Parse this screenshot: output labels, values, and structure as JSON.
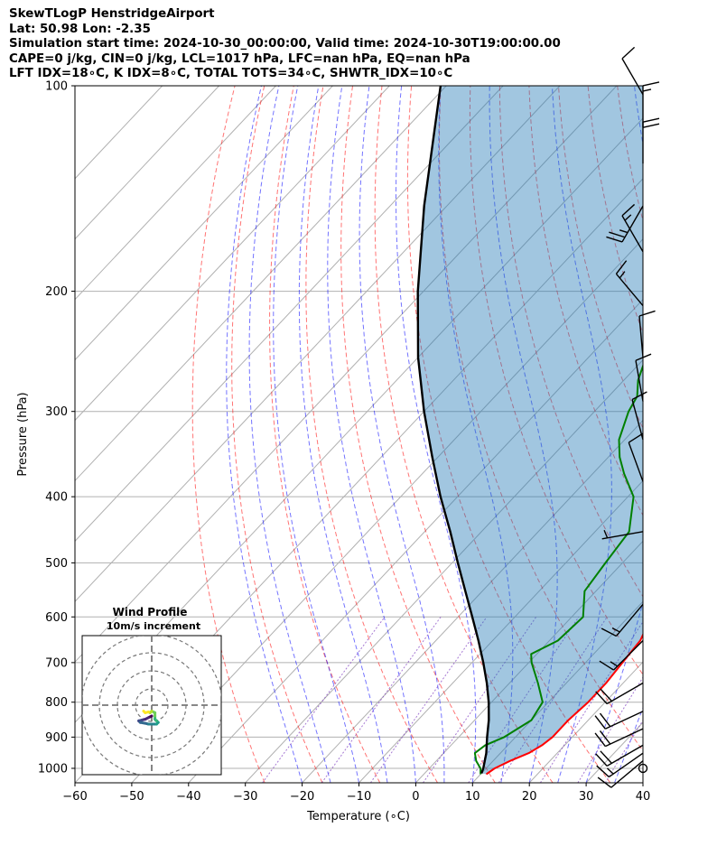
{
  "header": {
    "line1": "SkewTLogP HenstridgeAirport",
    "line2": "Lat: 50.98   Lon: -2.35",
    "line3": "Simulation start time: 2024-10-30_00:00:00, Valid time: 2024-10-30T19:00:00.00",
    "line4": "CAPE=0 j/kg, CIN=0 j/kg, LCL=1017 hPa, LFC=nan hPa, EQ=nan hPa",
    "line5": "LFT IDX=18∘C, K IDX=8∘C, TOTAL TOTS=34∘C, SHWTR_IDX=10∘C"
  },
  "chart_data": {
    "type": "line",
    "subtype": "skew-t log-p",
    "xlabel": "Temperature (∘C)",
    "ylabel": "Pressure (hPa)",
    "xlim": [
      -60,
      40
    ],
    "ylim": [
      1050,
      100
    ],
    "y_scale": "log",
    "x_ticks": [
      "−60",
      "−50",
      "−40",
      "−30",
      "−20",
      "−10",
      "0",
      "10",
      "20",
      "30",
      "40"
    ],
    "y_ticks": [
      "100",
      "200",
      "300",
      "400",
      "500",
      "600",
      "700",
      "800",
      "900",
      "1000"
    ],
    "x_tick_values": [
      -60,
      -50,
      -40,
      -30,
      -20,
      -10,
      0,
      10,
      20,
      30,
      40
    ],
    "y_tick_values": [
      100,
      200,
      300,
      400,
      500,
      600,
      700,
      800,
      900,
      1000
    ],
    "grid": true,
    "series": [
      {
        "role": "temperature",
        "color": "#ff0000",
        "points": [
          [
            1020,
            11
          ],
          [
            1000,
            11.5
          ],
          [
            975,
            13
          ],
          [
            950,
            15
          ],
          [
            925,
            16
          ],
          [
            900,
            16.5
          ],
          [
            850,
            16.5
          ],
          [
            800,
            17
          ],
          [
            750,
            17
          ],
          [
            700,
            16.5
          ],
          [
            650,
            16
          ],
          [
            600,
            14
          ],
          [
            550,
            11
          ],
          [
            500,
            7.5
          ],
          [
            450,
            3.5
          ],
          [
            400,
            -1
          ],
          [
            350,
            -6
          ],
          [
            300,
            -12.5
          ],
          [
            270,
            -17
          ],
          [
            250,
            -20
          ],
          [
            230,
            -23
          ],
          [
            210,
            -26.5
          ],
          [
            195,
            -30
          ],
          [
            185,
            -34
          ],
          [
            170,
            -38
          ],
          [
            155,
            -43
          ],
          [
            145,
            -47
          ],
          [
            130,
            -53
          ],
          [
            115,
            -58
          ],
          [
            100,
            -62
          ]
        ]
      },
      {
        "role": "dewpoint",
        "color": "#008000",
        "points": [
          [
            1020,
            10
          ],
          [
            1000,
            9
          ],
          [
            975,
            7
          ],
          [
            950,
            5.5
          ],
          [
            925,
            6
          ],
          [
            900,
            8
          ],
          [
            850,
            10
          ],
          [
            800,
            9
          ],
          [
            750,
            5
          ],
          [
            700,
            0.5
          ],
          [
            680,
            -1
          ],
          [
            650,
            1.5
          ],
          [
            600,
            2
          ],
          [
            550,
            -2
          ],
          [
            500,
            -3
          ],
          [
            450,
            -4
          ],
          [
            400,
            -9
          ],
          [
            370,
            -14.5
          ],
          [
            350,
            -18
          ],
          [
            330,
            -21
          ],
          [
            300,
            -24
          ],
          [
            285,
            -25
          ],
          [
            270,
            -27.5
          ],
          [
            245,
            -30.5
          ],
          [
            225,
            -34.5
          ],
          [
            200,
            -40
          ],
          [
            185,
            -43
          ],
          [
            170,
            -45.5
          ],
          [
            155,
            -49
          ],
          [
            140,
            -53
          ],
          [
            125,
            -55
          ],
          [
            110,
            -57.5
          ],
          [
            100,
            -60
          ]
        ]
      },
      {
        "role": "parcel",
        "color": "#000000",
        "points": [
          [
            1017,
            10
          ],
          [
            1000,
            9.5
          ],
          [
            950,
            7.5
          ],
          [
            900,
            5
          ],
          [
            850,
            2.5
          ],
          [
            800,
            -0.5
          ],
          [
            750,
            -4
          ],
          [
            700,
            -8
          ],
          [
            650,
            -12.5
          ],
          [
            600,
            -17.5
          ],
          [
            550,
            -23
          ],
          [
            500,
            -29
          ],
          [
            450,
            -35.5
          ],
          [
            400,
            -43
          ],
          [
            350,
            -51
          ],
          [
            300,
            -60
          ],
          [
            250,
            -70
          ],
          [
            200,
            -81
          ],
          [
            150,
            -94
          ],
          [
            100,
            -111
          ]
        ]
      }
    ],
    "dry_adiabats_theta_C": [
      -30,
      -20,
      -10,
      0,
      10,
      20,
      30,
      40,
      50,
      60,
      70,
      80,
      90,
      100,
      110,
      120,
      130,
      140,
      150
    ],
    "moist_adiabats_start_C": [
      -20,
      -15,
      -10,
      -5,
      0,
      5,
      10,
      15,
      20,
      25,
      30,
      35,
      40
    ],
    "mixing_ratio_lines": [
      0.4,
      1,
      2,
      4,
      7,
      10,
      16,
      24,
      32
    ],
    "wind_barbs": [
      {
        "p": 1000,
        "speed_kt": 0,
        "dir_deg": 0
      },
      {
        "p": 975,
        "speed_kt": 10,
        "dir_deg": 230
      },
      {
        "p": 950,
        "speed_kt": 15,
        "dir_deg": 235
      },
      {
        "p": 925,
        "speed_kt": 20,
        "dir_deg": 240
      },
      {
        "p": 875,
        "speed_kt": 20,
        "dir_deg": 245
      },
      {
        "p": 825,
        "speed_kt": 20,
        "dir_deg": 245
      },
      {
        "p": 750,
        "speed_kt": 20,
        "dir_deg": 240
      },
      {
        "p": 650,
        "speed_kt": 15,
        "dir_deg": 225
      },
      {
        "p": 575,
        "speed_kt": 15,
        "dir_deg": 220
      },
      {
        "p": 450,
        "speed_kt": 5,
        "dir_deg": 260
      },
      {
        "p": 380,
        "speed_kt": 10,
        "dir_deg": 340
      },
      {
        "p": 330,
        "speed_kt": 10,
        "dir_deg": 345
      },
      {
        "p": 290,
        "speed_kt": 10,
        "dir_deg": 350
      },
      {
        "p": 250,
        "speed_kt": 10,
        "dir_deg": 355
      },
      {
        "p": 210,
        "speed_kt": 15,
        "dir_deg": 320
      },
      {
        "p": 175,
        "speed_kt": 15,
        "dir_deg": 330
      },
      {
        "p": 150,
        "speed_kt": 25,
        "dir_deg": 210
      },
      {
        "p": 130,
        "speed_kt": 20,
        "dir_deg": 0
      },
      {
        "p": 115,
        "speed_kt": 15,
        "dir_deg": 0
      },
      {
        "p": 103,
        "speed_kt": 10,
        "dir_deg": 330
      }
    ],
    "inset": {
      "title": "Wind Profile",
      "subtitle": "10m/s increment",
      "hodograph_points": [
        [
          0,
          0
        ],
        [
          -2,
          1
        ],
        [
          -4,
          2
        ],
        [
          -6,
          2.5
        ],
        [
          -8,
          3
        ],
        [
          -7,
          4
        ],
        [
          -4,
          4.5
        ],
        [
          -2,
          5
        ],
        [
          1,
          5
        ],
        [
          3,
          5
        ],
        [
          4,
          4
        ],
        [
          3,
          3
        ],
        [
          2,
          2
        ],
        [
          2,
          0
        ],
        [
          2,
          -2
        ],
        [
          0,
          -3
        ],
        [
          -1,
          -2
        ],
        [
          -2,
          -2.5
        ],
        [
          -4,
          -2
        ],
        [
          -5,
          -3
        ]
      ]
    }
  }
}
